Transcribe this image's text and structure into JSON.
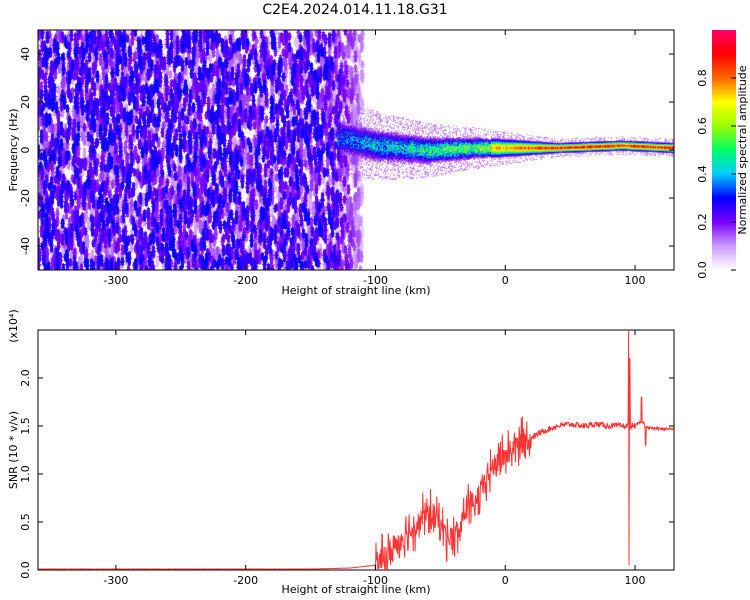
{
  "title": "C2E4.2024.014.11.18.G31",
  "chart_data": [
    {
      "type": "heatmap",
      "xlabel": "Height of straight line (km)",
      "ylabel": "Frequency (Hz)",
      "xlim": [
        -360,
        130
      ],
      "ylim": [
        -50,
        50
      ],
      "xticks": [
        -300,
        -200,
        -100,
        0,
        100
      ],
      "yticks": [
        -40,
        -20,
        0,
        20,
        40
      ],
      "colorbar": {
        "label": "Normalized spectral amplitude",
        "range": [
          0.0,
          1.0
        ],
        "ticks": [
          "0.0",
          "0.2",
          "0.4",
          "0.6",
          "0.8"
        ],
        "colormap": [
          "#ffffff",
          "#cc99ff",
          "#7a00ff",
          "#0000ff",
          "#00ccff",
          "#00ff66",
          "#99ff00",
          "#ffff00",
          "#ff6600",
          "#ff0000",
          "#ff0066"
        ]
      },
      "features": {
        "noise_region_x": [
          -360,
          -110
        ],
        "noise_level": [
          0.05,
          0.3
        ],
        "carrier_band_x": [
          -130,
          130
        ],
        "carrier_frequency": [
          [
            -125,
            5
          ],
          [
            -100,
            2
          ],
          [
            -60,
            0
          ],
          [
            -20,
            1
          ],
          [
            0,
            1
          ],
          [
            40,
            1
          ],
          [
            90,
            2
          ],
          [
            130,
            1
          ]
        ],
        "carrier_peak_amplitude": 0.95
      }
    },
    {
      "type": "line",
      "xlabel": "Height of straight line (km)",
      "ylabel": "SNR (10 * v/v)",
      "yexponent": "(x10⁴)",
      "xlim": [
        -360,
        130
      ],
      "ylim": [
        0,
        2.5
      ],
      "xticks": [
        -300,
        -200,
        -100,
        0,
        100
      ],
      "yticks": [
        0.0,
        0.5,
        1.0,
        1.5,
        2.0
      ],
      "ytick_labels": [
        "0.0",
        "0.5",
        "1.0",
        "1.5",
        "2.0"
      ],
      "series": [
        {
          "color": "#ff3333",
          "x": [
            -360,
            -300,
            -250,
            -200,
            -150,
            -120,
            -100,
            -90,
            -80,
            -70,
            -60,
            -50,
            -45,
            -40,
            -35,
            -30,
            -25,
            -20,
            -15,
            -10,
            -5,
            0,
            10,
            20,
            30,
            40,
            50,
            60,
            70,
            80,
            90,
            95,
            100,
            105,
            110,
            120,
            130
          ],
          "y": [
            0.01,
            0.01,
            0.01,
            0.01,
            0.01,
            0.02,
            0.05,
            0.15,
            0.35,
            0.45,
            0.6,
            0.5,
            0.35,
            0.3,
            0.4,
            0.7,
            0.6,
            0.75,
            0.95,
            1.05,
            1.15,
            1.2,
            1.3,
            1.38,
            1.45,
            1.5,
            1.52,
            1.5,
            1.52,
            1.5,
            1.5,
            1.5,
            1.5,
            1.55,
            1.48,
            1.47,
            1.47
          ],
          "spikes": [
            [
              95,
              2.5
            ],
            [
              95.5,
              0.05
            ],
            [
              96,
              2.2
            ],
            [
              105,
              1.8
            ],
            [
              108,
              1.3
            ]
          ]
        }
      ]
    }
  ]
}
